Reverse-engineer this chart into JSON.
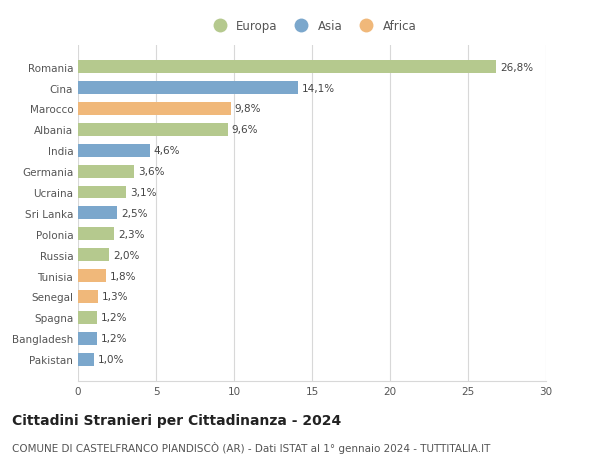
{
  "categories": [
    "Romania",
    "Cina",
    "Marocco",
    "Albania",
    "India",
    "Germania",
    "Ucraina",
    "Sri Lanka",
    "Polonia",
    "Russia",
    "Tunisia",
    "Senegal",
    "Spagna",
    "Bangladesh",
    "Pakistan"
  ],
  "values": [
    26.8,
    14.1,
    9.8,
    9.6,
    4.6,
    3.6,
    3.1,
    2.5,
    2.3,
    2.0,
    1.8,
    1.3,
    1.2,
    1.2,
    1.0
  ],
  "labels": [
    "26,8%",
    "14,1%",
    "9,8%",
    "9,6%",
    "4,6%",
    "3,6%",
    "3,1%",
    "2,5%",
    "2,3%",
    "2,0%",
    "1,8%",
    "1,3%",
    "1,2%",
    "1,2%",
    "1,0%"
  ],
  "continents": [
    "Europa",
    "Asia",
    "Africa",
    "Europa",
    "Asia",
    "Europa",
    "Europa",
    "Asia",
    "Europa",
    "Europa",
    "Africa",
    "Africa",
    "Europa",
    "Asia",
    "Asia"
  ],
  "colors": {
    "Europa": "#b5c98e",
    "Asia": "#7ba7cc",
    "Africa": "#f0b87a"
  },
  "legend_order": [
    "Europa",
    "Asia",
    "Africa"
  ],
  "xlim": [
    0,
    30
  ],
  "xticks": [
    0,
    5,
    10,
    15,
    20,
    25,
    30
  ],
  "title": "Cittadini Stranieri per Cittadinanza - 2024",
  "subtitle": "COMUNE DI CASTELFRANCO PIANDISCÒ (AR) - Dati ISTAT al 1° gennaio 2024 - TUTTITALIA.IT",
  "title_fontsize": 10,
  "subtitle_fontsize": 7.5,
  "label_fontsize": 7.5,
  "tick_fontsize": 7.5,
  "legend_fontsize": 8.5,
  "background_color": "#ffffff",
  "grid_color": "#d8d8d8"
}
